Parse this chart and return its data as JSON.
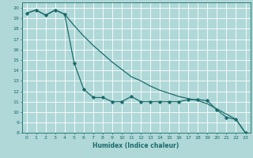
{
  "title": "",
  "xlabel": "Humidex (Indice chaleur)",
  "bg_color": "#b0d8d8",
  "grid_color": "#e8e8e8",
  "line_color": "#1a6b6b",
  "xlim": [
    -0.5,
    23.5
  ],
  "ylim": [
    8,
    20.5
  ],
  "xticks": [
    0,
    1,
    2,
    3,
    4,
    5,
    6,
    7,
    8,
    9,
    10,
    11,
    12,
    13,
    14,
    15,
    16,
    17,
    18,
    19,
    20,
    21,
    22,
    23
  ],
  "yticks": [
    8,
    9,
    10,
    11,
    12,
    13,
    14,
    15,
    16,
    17,
    18,
    19,
    20
  ],
  "curve1_x": [
    0,
    1,
    2,
    3,
    4,
    5,
    6,
    7,
    8,
    9,
    10,
    11,
    12,
    13,
    14,
    15,
    16,
    17,
    18,
    19,
    20,
    21,
    22,
    23
  ],
  "curve1_y": [
    19.5,
    19.8,
    19.3,
    19.8,
    19.4,
    14.7,
    12.2,
    11.4,
    11.4,
    11.0,
    11.0,
    11.5,
    11.0,
    11.0,
    11.0,
    11.0,
    11.0,
    11.2,
    11.2,
    11.1,
    10.2,
    9.5,
    9.3,
    8.0
  ],
  "curve2_x": [
    0,
    1,
    2,
    3,
    4,
    5,
    6,
    7,
    8,
    9,
    10,
    11,
    12,
    13,
    14,
    15,
    16,
    17,
    18,
    19,
    20,
    21,
    22,
    23
  ],
  "curve2_y": [
    19.5,
    19.8,
    19.3,
    19.8,
    19.4,
    18.3,
    17.3,
    16.4,
    15.6,
    14.8,
    14.1,
    13.4,
    13.0,
    12.5,
    12.1,
    11.8,
    11.5,
    11.3,
    11.1,
    10.8,
    10.3,
    9.8,
    9.3,
    8.0
  ]
}
